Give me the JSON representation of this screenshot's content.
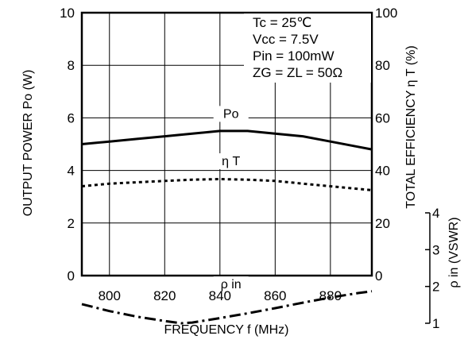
{
  "chart_data": {
    "type": "line",
    "xlabel": "FREQUENCY  f  (MHz)",
    "ylabel_left": "OUTPUT  POWER  Po  (W)",
    "ylabel_right": "TOTAL  EFFICIENCY  η T  (%)",
    "ylabel_right2": "ρ in  (VSWR)",
    "xlim": [
      790,
      895
    ],
    "ylim_left": [
      0,
      10
    ],
    "ylim_right": [
      0,
      100
    ],
    "ylim_right2": [
      1,
      4
    ],
    "x_ticks": [
      "800",
      "820",
      "840",
      "860",
      "880"
    ],
    "y_ticks_left": [
      "0",
      "2",
      "4",
      "6",
      "8",
      "10"
    ],
    "y_ticks_right": [
      "0",
      "20",
      "40",
      "60",
      "80",
      "100"
    ],
    "y_ticks_right2": [
      "1",
      "2",
      "3",
      "4"
    ],
    "grid": true,
    "conditions": [
      "Tc = 25℃",
      "Vcc = 7.5V",
      "Pin = 100mW",
      "ZG = ZL = 50Ω"
    ],
    "series": [
      {
        "name": "Po",
        "axis": "left",
        "style": "solid",
        "x": [
          790,
          800,
          810,
          820,
          830,
          840,
          850,
          860,
          870,
          880,
          890,
          895
        ],
        "y": [
          5.0,
          5.1,
          5.2,
          5.3,
          5.4,
          5.5,
          5.5,
          5.4,
          5.3,
          5.1,
          4.9,
          4.8
        ]
      },
      {
        "name": "η T",
        "axis": "right",
        "style": "dotted",
        "x": [
          790,
          800,
          810,
          820,
          830,
          840,
          850,
          860,
          870,
          880,
          890,
          895
        ],
        "y": [
          34,
          35,
          35.5,
          36,
          36.5,
          36.7,
          36.5,
          36,
          35,
          34,
          33,
          32.5
        ]
      },
      {
        "name": "ρ in",
        "axis": "right2",
        "style": "dash-dot",
        "x": [
          790,
          800,
          810,
          820,
          826,
          830,
          840,
          850,
          860,
          870,
          880,
          890,
          895
        ],
        "y": [
          1.52,
          1.33,
          1.18,
          1.06,
          1.0,
          1.02,
          1.14,
          1.27,
          1.41,
          1.56,
          1.7,
          1.82,
          1.87
        ]
      }
    ]
  }
}
